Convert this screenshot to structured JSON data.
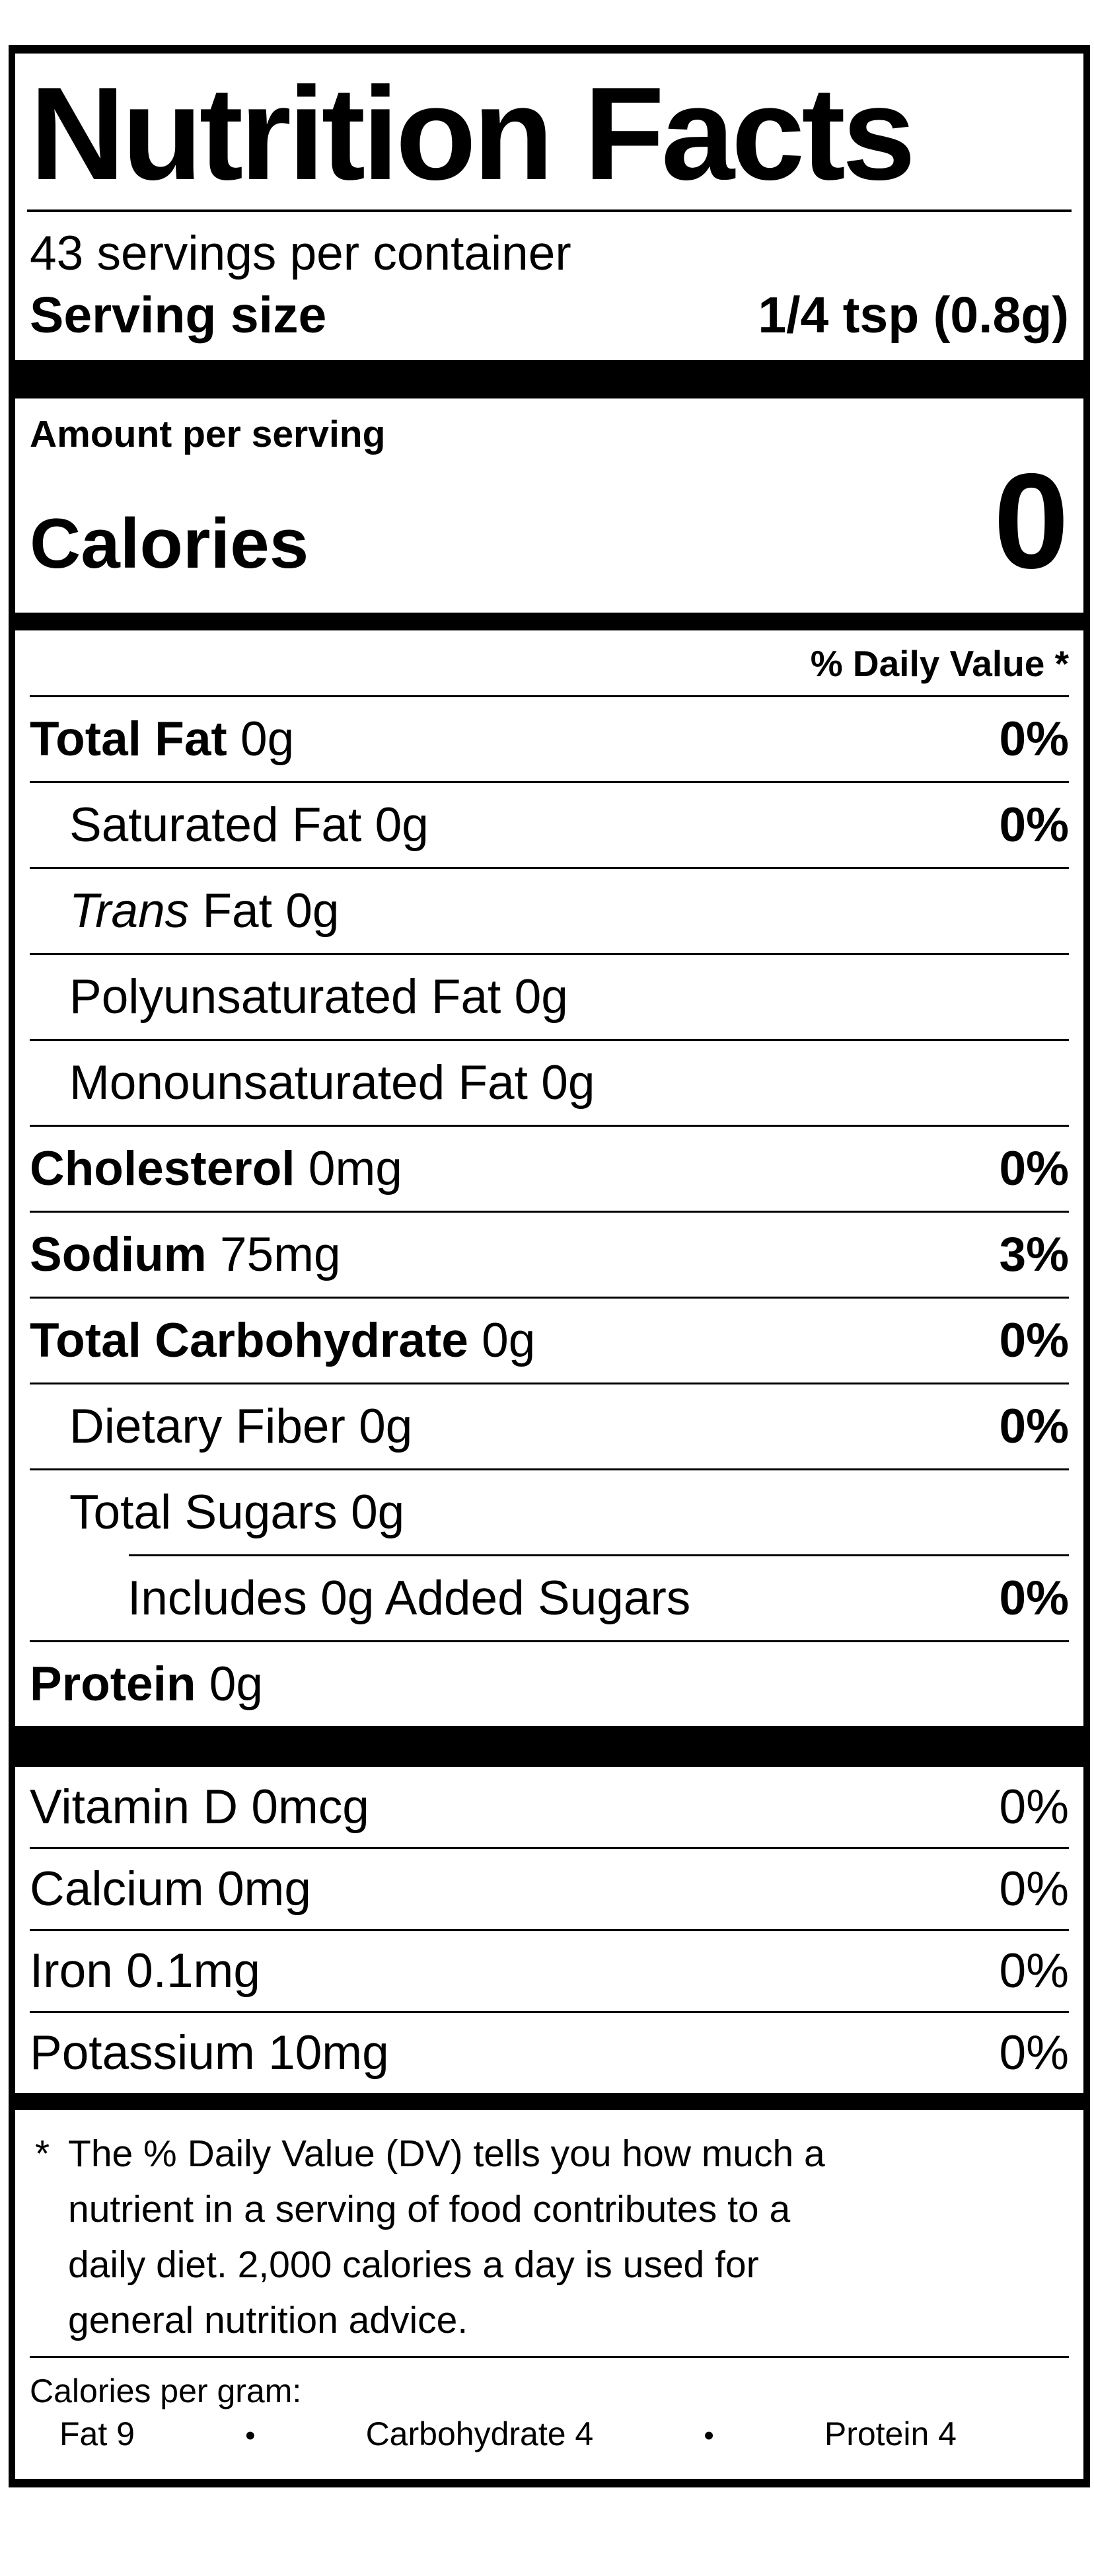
{
  "label": {
    "title": "Nutrition Facts",
    "servings_per_container": "43 servings per container",
    "serving_size": {
      "label": "Serving size",
      "value": "1/4 tsp (0.8g)"
    },
    "amount_per_serving": "Amount per serving",
    "calories": {
      "label": "Calories",
      "value": "0"
    },
    "daily_value_header": "% Daily Value *",
    "nutrients": [
      {
        "name": "Total Fat",
        "amount": "0g",
        "dv": "0%",
        "bold_name": true,
        "indent": 0
      },
      {
        "name": "Saturated Fat",
        "amount": "0g",
        "dv": "0%",
        "indent": 1
      },
      {
        "name": "Trans",
        "italic_name": true,
        "amount": "Fat 0g",
        "dv": "",
        "indent": 1
      },
      {
        "name": "Polyunsaturated Fat",
        "amount": "0g",
        "dv": "",
        "indent": 1
      },
      {
        "name": "Monounsaturated Fat",
        "amount": "0g",
        "dv": "",
        "indent": 1
      },
      {
        "name": "Cholesterol",
        "amount": "0mg",
        "dv": "0%",
        "bold_name": true,
        "indent": 0
      },
      {
        "name": "Sodium",
        "amount": "75mg",
        "dv": "3%",
        "bold_name": true,
        "indent": 0
      },
      {
        "name": "Total Carbohydrate",
        "amount": "0g",
        "dv": "0%",
        "bold_name": true,
        "indent": 0
      },
      {
        "name": "Dietary Fiber",
        "amount": "0g",
        "dv": "0%",
        "indent": 1
      },
      {
        "name": "Total Sugars",
        "amount": "0g",
        "dv": "",
        "indent": 1,
        "no_divider_below": true
      },
      {
        "name": "Includes 0g Added Sugars",
        "amount": "",
        "dv": "0%",
        "indent": 2,
        "indented_divider_above": true
      },
      {
        "name": "Protein",
        "amount": "0g",
        "dv": "",
        "bold_name": true,
        "indent": 0,
        "no_divider_below": true
      }
    ],
    "micronutrients": [
      {
        "name": "Vitamin D",
        "amount": "0mcg",
        "dv": "0%"
      },
      {
        "name": "Calcium",
        "amount": "0mg",
        "dv": "0%"
      },
      {
        "name": "Iron",
        "amount": "0.1mg",
        "dv": "0%"
      },
      {
        "name": "Potassium",
        "amount": "10mg",
        "dv": "0%",
        "no_divider_below": true
      }
    ],
    "footnote": {
      "marker": "*",
      "lines": [
        "The % Daily Value (DV) tells you how much a",
        "nutrient in a serving of food contributes to a",
        "daily diet. 2,000 calories a day is used for",
        "general nutrition advice."
      ]
    },
    "calories_per_gram": {
      "heading": "Calories per gram:",
      "separator": "•",
      "items": [
        "Fat 9",
        "Carbohydrate 4",
        "Protein 4"
      ]
    }
  }
}
